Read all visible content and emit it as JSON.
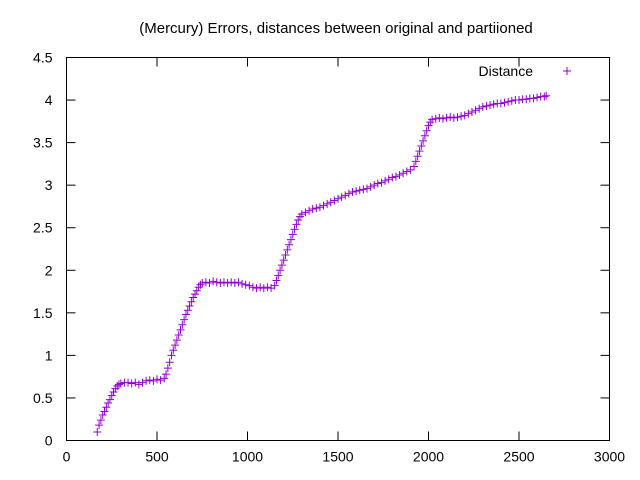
{
  "chart_data": {
    "type": "scatter",
    "title": "(Mercury) Errors, distances between original and partiioned",
    "xlabel": "",
    "ylabel": "",
    "xlim": [
      0,
      3000
    ],
    "ylim": [
      0,
      4.5
    ],
    "x_ticks": [
      0,
      500,
      1000,
      1500,
      2000,
      2500,
      3000
    ],
    "y_ticks": [
      0,
      0.5,
      1,
      1.5,
      2,
      2.5,
      3,
      3.5,
      4,
      4.5
    ],
    "x_tick_labels": [
      "0",
      "500",
      "1000",
      "1500",
      "2000",
      "2500",
      "3000"
    ],
    "y_tick_labels": [
      "0",
      "0.5",
      "1",
      "1.5",
      "2",
      "2.5",
      "3",
      "3.5",
      "4",
      "4.5"
    ],
    "grid": false,
    "legend_position": "top-right",
    "marker": "plus",
    "series": [
      {
        "name": "Distance",
        "color": "#9400d3",
        "points": [
          [
            170,
            0.1
          ],
          [
            180,
            0.18
          ],
          [
            190,
            0.24
          ],
          [
            200,
            0.3
          ],
          [
            210,
            0.34
          ],
          [
            220,
            0.39
          ],
          [
            230,
            0.44
          ],
          [
            240,
            0.48
          ],
          [
            250,
            0.53
          ],
          [
            260,
            0.57
          ],
          [
            270,
            0.61
          ],
          [
            280,
            0.64
          ],
          [
            290,
            0.66
          ],
          [
            300,
            0.67
          ],
          [
            320,
            0.68
          ],
          [
            340,
            0.68
          ],
          [
            360,
            0.67
          ],
          [
            380,
            0.68
          ],
          [
            400,
            0.66
          ],
          [
            420,
            0.68
          ],
          [
            440,
            0.7
          ],
          [
            460,
            0.71
          ],
          [
            480,
            0.7
          ],
          [
            500,
            0.72
          ],
          [
            520,
            0.71
          ],
          [
            540,
            0.73
          ],
          [
            550,
            0.78
          ],
          [
            560,
            0.85
          ],
          [
            570,
            0.92
          ],
          [
            580,
            1.0
          ],
          [
            590,
            1.06
          ],
          [
            600,
            1.12
          ],
          [
            610,
            1.18
          ],
          [
            620,
            1.24
          ],
          [
            630,
            1.3
          ],
          [
            640,
            1.36
          ],
          [
            650,
            1.42
          ],
          [
            660,
            1.48
          ],
          [
            670,
            1.53
          ],
          [
            680,
            1.58
          ],
          [
            690,
            1.63
          ],
          [
            700,
            1.68
          ],
          [
            710,
            1.72
          ],
          [
            720,
            1.76
          ],
          [
            730,
            1.8
          ],
          [
            740,
            1.83
          ],
          [
            750,
            1.85
          ],
          [
            770,
            1.86
          ],
          [
            790,
            1.85
          ],
          [
            810,
            1.87
          ],
          [
            830,
            1.86
          ],
          [
            850,
            1.85
          ],
          [
            870,
            1.86
          ],
          [
            890,
            1.85
          ],
          [
            910,
            1.86
          ],
          [
            930,
            1.85
          ],
          [
            950,
            1.86
          ],
          [
            970,
            1.84
          ],
          [
            990,
            1.83
          ],
          [
            1010,
            1.82
          ],
          [
            1030,
            1.8
          ],
          [
            1050,
            1.79
          ],
          [
            1070,
            1.8
          ],
          [
            1090,
            1.79
          ],
          [
            1110,
            1.8
          ],
          [
            1130,
            1.79
          ],
          [
            1150,
            1.82
          ],
          [
            1160,
            1.88
          ],
          [
            1170,
            1.94
          ],
          [
            1180,
            2.0
          ],
          [
            1190,
            2.06
          ],
          [
            1200,
            2.12
          ],
          [
            1210,
            2.18
          ],
          [
            1220,
            2.24
          ],
          [
            1230,
            2.3
          ],
          [
            1240,
            2.36
          ],
          [
            1250,
            2.42
          ],
          [
            1260,
            2.48
          ],
          [
            1270,
            2.54
          ],
          [
            1280,
            2.59
          ],
          [
            1290,
            2.63
          ],
          [
            1300,
            2.66
          ],
          [
            1320,
            2.68
          ],
          [
            1340,
            2.7
          ],
          [
            1360,
            2.72
          ],
          [
            1380,
            2.73
          ],
          [
            1400,
            2.74
          ],
          [
            1420,
            2.76
          ],
          [
            1440,
            2.78
          ],
          [
            1460,
            2.8
          ],
          [
            1480,
            2.82
          ],
          [
            1500,
            2.84
          ],
          [
            1520,
            2.86
          ],
          [
            1540,
            2.88
          ],
          [
            1560,
            2.9
          ],
          [
            1580,
            2.92
          ],
          [
            1600,
            2.93
          ],
          [
            1620,
            2.94
          ],
          [
            1640,
            2.95
          ],
          [
            1660,
            2.96
          ],
          [
            1680,
            2.98
          ],
          [
            1700,
            3.0
          ],
          [
            1720,
            3.02
          ],
          [
            1740,
            3.03
          ],
          [
            1760,
            3.05
          ],
          [
            1780,
            3.07
          ],
          [
            1800,
            3.09
          ],
          [
            1820,
            3.1
          ],
          [
            1840,
            3.12
          ],
          [
            1860,
            3.14
          ],
          [
            1880,
            3.16
          ],
          [
            1900,
            3.18
          ],
          [
            1920,
            3.22
          ],
          [
            1930,
            3.28
          ],
          [
            1940,
            3.34
          ],
          [
            1950,
            3.4
          ],
          [
            1960,
            3.46
          ],
          [
            1970,
            3.52
          ],
          [
            1980,
            3.58
          ],
          [
            1990,
            3.64
          ],
          [
            2000,
            3.7
          ],
          [
            2010,
            3.74
          ],
          [
            2020,
            3.77
          ],
          [
            2040,
            3.78
          ],
          [
            2060,
            3.79
          ],
          [
            2080,
            3.78
          ],
          [
            2100,
            3.79
          ],
          [
            2120,
            3.8
          ],
          [
            2140,
            3.79
          ],
          [
            2160,
            3.8
          ],
          [
            2180,
            3.81
          ],
          [
            2200,
            3.82
          ],
          [
            2220,
            3.84
          ],
          [
            2240,
            3.86
          ],
          [
            2260,
            3.88
          ],
          [
            2280,
            3.9
          ],
          [
            2300,
            3.92
          ],
          [
            2320,
            3.93
          ],
          [
            2340,
            3.94
          ],
          [
            2360,
            3.95
          ],
          [
            2380,
            3.96
          ],
          [
            2400,
            3.96
          ],
          [
            2420,
            3.97
          ],
          [
            2440,
            3.98
          ],
          [
            2460,
            3.99
          ],
          [
            2480,
            4.0
          ],
          [
            2500,
            4.0
          ],
          [
            2520,
            4.01
          ],
          [
            2540,
            4.01
          ],
          [
            2560,
            4.02
          ],
          [
            2580,
            4.02
          ],
          [
            2600,
            4.03
          ],
          [
            2620,
            4.04
          ],
          [
            2640,
            4.04
          ],
          [
            2650,
            4.05
          ]
        ]
      }
    ]
  }
}
